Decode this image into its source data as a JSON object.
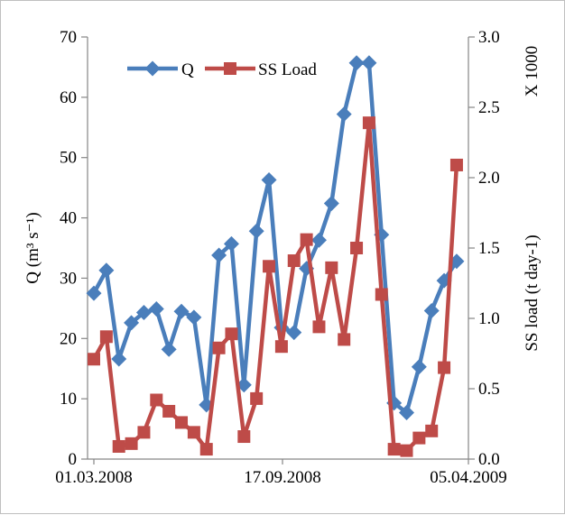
{
  "chart_data": {
    "type": "line",
    "x_tick_labels": [
      "01.03.2008",
      "17.09.2008",
      "05.04.2009"
    ],
    "ylabel_left": "Q (m³ s⁻¹)",
    "ylabel_right": "SS load (t day-1)",
    "right_multiplier_label": "X 1000",
    "ylim_left": [
      0,
      70
    ],
    "ylim_right": [
      0.0,
      3.0
    ],
    "yticks_left": [
      "0",
      "10",
      "20",
      "30",
      "40",
      "50",
      "60",
      "70"
    ],
    "yticks_right": [
      "0.0",
      "0.5",
      "1.0",
      "1.5",
      "2.0",
      "2.5",
      "3.0"
    ],
    "legend_placement": "top-left",
    "grid": false,
    "series": [
      {
        "name": "Q",
        "axis": "left",
        "color": "#4a7ebb",
        "marker": "diamond",
        "values": [
          27.5,
          31.3,
          16.6,
          22.6,
          24.3,
          24.9,
          18.2,
          24.5,
          23.5,
          9.0,
          33.8,
          35.7,
          12.3,
          37.8,
          46.3,
          21.8,
          21.0,
          31.6,
          36.3,
          42.4,
          57.2,
          65.7,
          65.7,
          37.2,
          9.3,
          7.7,
          15.3,
          24.6,
          29.6,
          32.8
        ]
      },
      {
        "name": "SS Load",
        "axis": "right",
        "color": "#be4b48",
        "marker": "square",
        "values": [
          0.71,
          0.87,
          0.09,
          0.11,
          0.19,
          0.42,
          0.34,
          0.26,
          0.19,
          0.07,
          0.79,
          0.89,
          0.16,
          0.43,
          1.37,
          0.8,
          1.41,
          1.56,
          0.94,
          1.36,
          0.85,
          1.5,
          2.39,
          1.17,
          0.07,
          0.06,
          0.15,
          0.2,
          0.65,
          2.09
        ]
      }
    ]
  }
}
